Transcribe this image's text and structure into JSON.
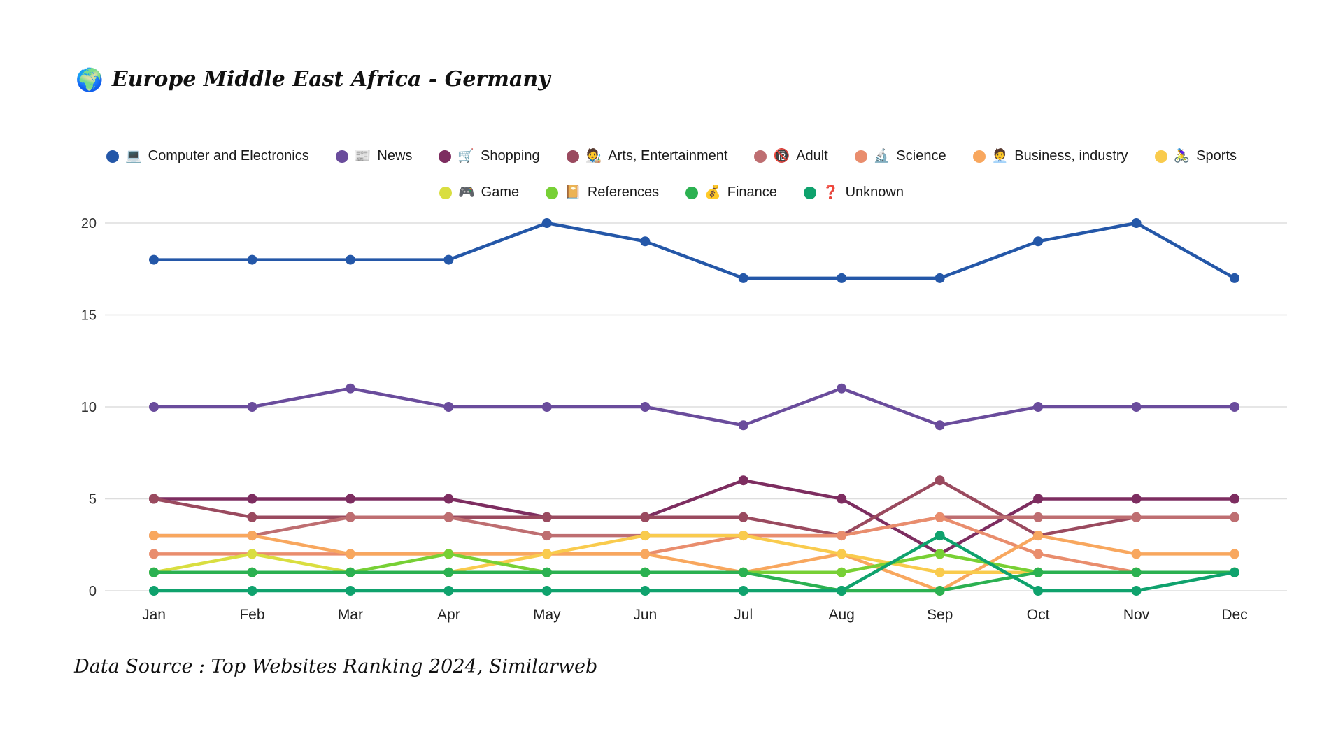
{
  "header": {
    "emoji": "🌍",
    "title": "Europe Middle East Africa - Germany"
  },
  "footer": {
    "text": "Data Source : Top Websites Ranking 2024, Similarweb"
  },
  "chart_data": {
    "type": "line",
    "title": "Europe Middle East Africa - Germany",
    "categories": [
      "Jan",
      "Feb",
      "Mar",
      "Apr",
      "May",
      "Jun",
      "Jul",
      "Aug",
      "Sep",
      "Oct",
      "Nov",
      "Dec"
    ],
    "xlabel": "",
    "ylabel": "",
    "ylim": [
      0,
      20
    ],
    "yticks": [
      0,
      5,
      10,
      15,
      20
    ],
    "grid": "horizontal",
    "legend_position": "top",
    "gridline_color": "#dddddd",
    "series": [
      {
        "name": "Computer and Electronics",
        "emoji": "💻",
        "color": "#2457A8",
        "values": [
          18,
          18,
          18,
          18,
          20,
          19,
          17,
          17,
          17,
          19,
          20,
          17
        ]
      },
      {
        "name": "News",
        "emoji": "📰",
        "color": "#6A4C9C",
        "values": [
          10,
          10,
          11,
          10,
          10,
          10,
          9,
          11,
          9,
          10,
          10,
          10
        ]
      },
      {
        "name": "Shopping",
        "emoji": "🛒",
        "color": "#7D2D60",
        "values": [
          5,
          5,
          5,
          5,
          4,
          4,
          6,
          5,
          2,
          5,
          5,
          5
        ]
      },
      {
        "name": "Arts, Entertainment",
        "emoji": "🧑‍🎨",
        "color": "#9A4A5F",
        "values": [
          5,
          4,
          4,
          4,
          4,
          4,
          4,
          3,
          6,
          3,
          4,
          4
        ]
      },
      {
        "name": "Adult",
        "emoji": "🔞",
        "color": "#BE6E71",
        "values": [
          3,
          3,
          4,
          4,
          3,
          3,
          3,
          3,
          4,
          4,
          4,
          4
        ]
      },
      {
        "name": "Science",
        "emoji": "🔬",
        "color": "#E98D6D",
        "values": [
          2,
          2,
          2,
          2,
          2,
          2,
          3,
          3,
          4,
          2,
          1,
          1
        ]
      },
      {
        "name": "Business, industry",
        "emoji": "🧑‍💼",
        "color": "#F8A75E",
        "values": [
          3,
          3,
          2,
          2,
          2,
          2,
          1,
          2,
          0,
          3,
          2,
          2
        ]
      },
      {
        "name": "Sports",
        "emoji": "🚴‍♀️",
        "color": "#F9CB4D",
        "values": [
          1,
          1,
          1,
          1,
          2,
          3,
          3,
          2,
          1,
          1,
          1,
          1
        ]
      },
      {
        "name": "Game",
        "emoji": "🎮",
        "color": "#D9DE40",
        "values": [
          1,
          2,
          1,
          1,
          1,
          1,
          1,
          1,
          2,
          1,
          1,
          1
        ]
      },
      {
        "name": "References",
        "emoji": "📔",
        "color": "#77D035",
        "values": [
          1,
          1,
          1,
          2,
          1,
          1,
          1,
          1,
          2,
          1,
          1,
          1
        ]
      },
      {
        "name": "Finance",
        "emoji": "💰",
        "color": "#2BB151",
        "values": [
          1,
          1,
          1,
          1,
          1,
          1,
          1,
          0,
          0,
          1,
          1,
          1
        ]
      },
      {
        "name": "Unknown",
        "emoji": "❓",
        "color": "#0FA26D",
        "values": [
          0,
          0,
          0,
          0,
          0,
          0,
          0,
          0,
          3,
          0,
          0,
          1
        ]
      }
    ]
  }
}
